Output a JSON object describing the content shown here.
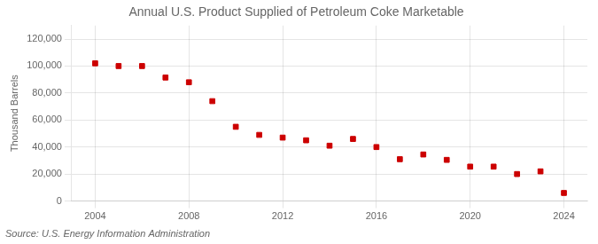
{
  "chart_data": {
    "type": "scatter",
    "title": "Annual U.S. Product Supplied of Petroleum Coke Marketable",
    "ylabel": "Thousand Barrels",
    "source": "Source: U.S. Energy Information Administration",
    "x": [
      2004,
      2005,
      2006,
      2007,
      2008,
      2009,
      2010,
      2011,
      2012,
      2013,
      2014,
      2015,
      2016,
      2017,
      2018,
      2019,
      2020,
      2021,
      2022,
      2023,
      2024
    ],
    "values": [
      102000,
      100000,
      100000,
      91500,
      88000,
      74000,
      55000,
      49000,
      47000,
      45000,
      41000,
      46000,
      40000,
      31000,
      34500,
      30500,
      25500,
      25500,
      20000,
      22000,
      6000
    ],
    "color": "#cc0000",
    "marker": "square",
    "xlim": [
      2003.0,
      2025.0
    ],
    "xticks": [
      2004,
      2008,
      2012,
      2016,
      2020,
      2024
    ],
    "ylim": [
      0,
      130000
    ],
    "yticks": [
      0,
      {
        "value": 20000,
        "label": "20,000"
      },
      {
        "value": 40000,
        "label": "40,000"
      },
      {
        "value": 60000,
        "label": "60,000"
      },
      {
        "value": 80000,
        "label": "80,000"
      },
      {
        "value": 100000,
        "label": "100,000"
      },
      {
        "value": 120000,
        "label": "120,000"
      }
    ],
    "grid": true
  }
}
